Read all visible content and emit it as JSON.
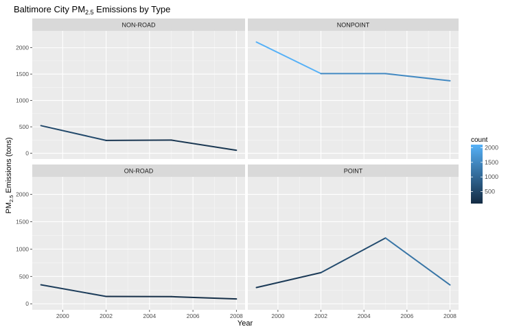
{
  "chart_data": {
    "type": "line",
    "title": "Baltimore City PM",
    "title_sub": "2.5",
    "title_rest": " Emissions by Type",
    "xlabel": "Year",
    "ylabel": "PM",
    "ylabel_sub": "2.5",
    "ylabel_rest": " Emissions (tons)",
    "x_ticks": [
      "2000",
      "2002",
      "2004",
      "2006",
      "2008"
    ],
    "y_ticks": [
      "0",
      "500",
      "1000",
      "1500",
      "2000"
    ],
    "xlim": [
      1998.6,
      2008.4
    ],
    "ylim": [
      -110,
      2320
    ],
    "legend": {
      "title": "count",
      "ticks": [
        "500",
        "1000",
        "1500",
        "2000"
      ],
      "range": [
        88,
        2107
      ],
      "low_color": "#132b43",
      "high_color": "#56b1f7"
    },
    "panels": [
      {
        "name": "NON-ROAD",
        "x": [
          1999,
          2002,
          2005,
          2008
        ],
        "values": [
          522.9,
          242.7,
          248.9,
          55.8
        ]
      },
      {
        "name": "NONPOINT",
        "x": [
          1999,
          2002,
          2005,
          2008
        ],
        "values": [
          2107.6,
          1509.5,
          1509.5,
          1373.2
        ]
      },
      {
        "name": "ON-ROAD",
        "x": [
          1999,
          2002,
          2005,
          2008
        ],
        "values": [
          346.8,
          134.3,
          130.4,
          88.3
        ]
      },
      {
        "name": "POINT",
        "x": [
          1999,
          2002,
          2005,
          2008
        ],
        "values": [
          296.8,
          569.3,
          1202.5,
          344.98
        ]
      }
    ]
  }
}
